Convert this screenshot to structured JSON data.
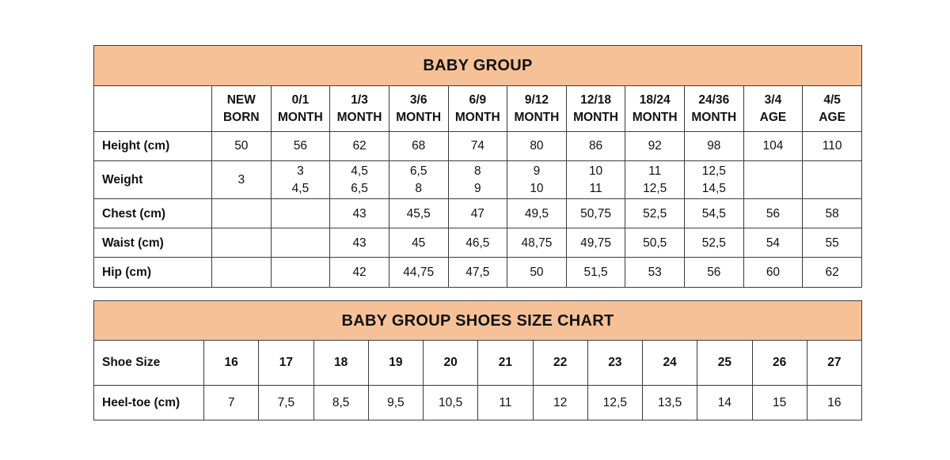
{
  "colors": {
    "header_bg": "#F7C197",
    "border": "#3b3b3b",
    "text": "#111111",
    "page_bg": "#ffffff"
  },
  "baby_group_table": {
    "title": "BABY GROUP",
    "corner_label": "",
    "column_headers": [
      "NEW\nBORN",
      "0/1\nMONTH",
      "1/3\nMONTH",
      "3/6\nMONTH",
      "6/9\nMONTH",
      "9/12\nMONTH",
      "12/18\nMONTH",
      "18/24\nMONTH",
      "24/36\nMONTH",
      "3/4\nAGE",
      "4/5\nAGE"
    ],
    "rows": [
      {
        "label": "Height (cm)",
        "bold_values": false,
        "values": [
          "50",
          "56",
          "62",
          "68",
          "74",
          "80",
          "86",
          "92",
          "98",
          "104",
          "110"
        ]
      },
      {
        "label": "Weight",
        "bold_values": false,
        "values": [
          "3",
          "3\n4,5",
          "4,5\n6,5",
          "6,5\n8",
          "8\n9",
          "9\n10",
          "10\n11",
          "11\n12,5",
          "12,5\n14,5",
          "",
          ""
        ]
      },
      {
        "label": "Chest (cm)",
        "bold_values": false,
        "values": [
          "",
          "",
          "43",
          "45,5",
          "47",
          "49,5",
          "50,75",
          "52,5",
          "54,5",
          "56",
          "58"
        ]
      },
      {
        "label": "Waist (cm)",
        "bold_values": false,
        "values": [
          "",
          "",
          "43",
          "45",
          "46,5",
          "48,75",
          "49,75",
          "50,5",
          "52,5",
          "54",
          "55"
        ]
      },
      {
        "label": "Hip (cm)",
        "bold_values": false,
        "values": [
          "",
          "",
          "42",
          "44,75",
          "47,5",
          "50",
          "51,5",
          "53",
          "56",
          "60",
          "62"
        ]
      }
    ]
  },
  "shoes_table": {
    "title": "BABY GROUP SHOES SIZE CHART",
    "rows": [
      {
        "label": "Shoe Size",
        "bold_values": true,
        "values": [
          "16",
          "17",
          "18",
          "19",
          "20",
          "21",
          "22",
          "23",
          "24",
          "25",
          "26",
          "27"
        ]
      },
      {
        "label": "Heel-toe (cm)",
        "bold_values": false,
        "values": [
          "7",
          "7,5",
          "8,5",
          "9,5",
          "10,5",
          "11",
          "12",
          "12,5",
          "13,5",
          "14",
          "15",
          "16"
        ]
      }
    ]
  }
}
